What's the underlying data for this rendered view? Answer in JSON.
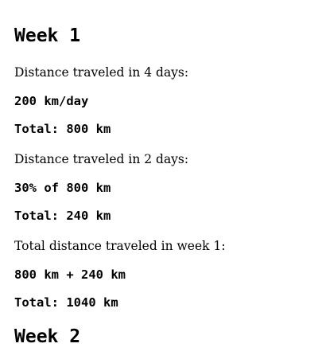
{
  "week1": {
    "heading": "Week 1",
    "blocks": [
      {
        "description": "Distance traveled in 4 days:",
        "expression": "200 km/day",
        "total": "Total: 800 km"
      },
      {
        "description": "Distance traveled in 2 days:",
        "expression": "30% of 800 km",
        "total": "Total: 240 km"
      },
      {
        "description": "Total distance traveled in week 1:",
        "expression": "800 km + 240 km",
        "total": "Total: 1040 km"
      }
    ]
  },
  "week2": {
    "heading": "Week 2"
  }
}
